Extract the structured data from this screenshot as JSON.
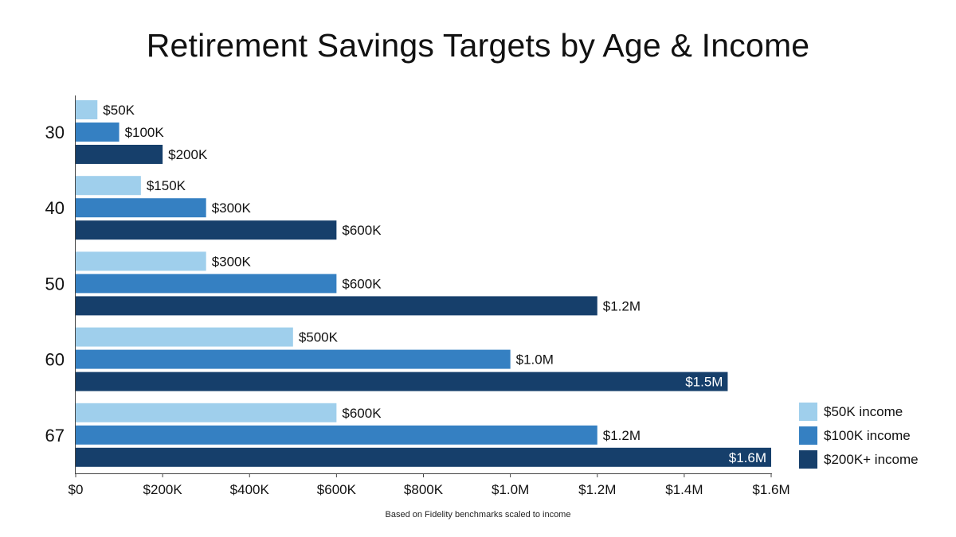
{
  "chart_data": {
    "type": "bar",
    "orientation": "horizontal",
    "title": "Retirement Savings Targets by Age & Income",
    "note": "Based on Fidelity benchmarks scaled to income",
    "categories": [
      "30",
      "40",
      "50",
      "60",
      "67"
    ],
    "series": [
      {
        "name": "$50K income",
        "color": "#9fcfec",
        "values": [
          50000,
          150000,
          300000,
          500000,
          600000
        ],
        "labels": [
          "$50K",
          "$150K",
          "$300K",
          "$500K",
          "$600K"
        ]
      },
      {
        "name": "$100K income",
        "color": "#3580c2",
        "values": [
          100000,
          300000,
          600000,
          1000000,
          1200000
        ],
        "labels": [
          "$100K",
          "$300K",
          "$600K",
          "$1.0M",
          "$1.2M"
        ]
      },
      {
        "name": "$200K+ income",
        "color": "#163f6b",
        "values": [
          200000,
          600000,
          1200000,
          1500000,
          1600000
        ],
        "labels": [
          "$200K",
          "$600K",
          "$1.2M",
          "$1.5M",
          "$1.6M"
        ]
      }
    ],
    "xlim": [
      0,
      1600000
    ],
    "xticks": [
      0,
      200000,
      400000,
      600000,
      800000,
      1000000,
      1200000,
      1400000,
      1600000
    ],
    "xtick_labels": [
      "$0",
      "$200K",
      "$400K",
      "$600K",
      "$800K",
      "$1.0M",
      "$1.2M",
      "$1.4M",
      "$1.6M"
    ],
    "xlabel": "",
    "ylabel": "",
    "grid": false,
    "legend_position": "bottom-right"
  }
}
